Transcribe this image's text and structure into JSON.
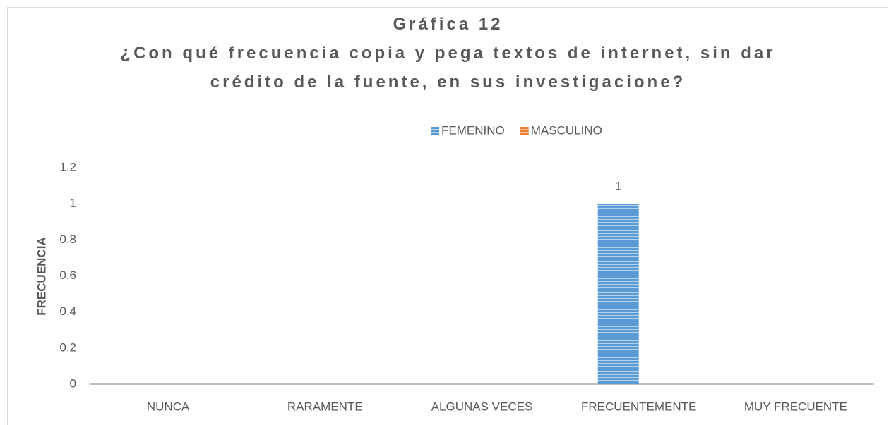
{
  "chart_data": {
    "type": "bar",
    "title": "Gráfica 12",
    "subtitle": "¿Con qué frecuencia copia y pega textos de internet, sin dar crédito de la fuente, en sus investigacione?",
    "y_label": "FRECUENCIA",
    "categories": [
      "NUNCA",
      "RARAMENTE",
      "ALGUNAS VECES",
      "FRECUENTEMENTE",
      "MUY FRECUENTE"
    ],
    "series": [
      {
        "name": "FEMENINO",
        "color": "#5b9bd5",
        "values": [
          null,
          null,
          null,
          1,
          null
        ]
      },
      {
        "name": "MASCULINO",
        "color": "#ed7d31",
        "values": [
          null,
          null,
          null,
          null,
          null
        ]
      }
    ],
    "ylim": [
      0,
      1.2
    ],
    "yticks": [
      0,
      0.2,
      0.4,
      0.6,
      0.8,
      1,
      1.2
    ],
    "legend": "top",
    "grid": false
  }
}
